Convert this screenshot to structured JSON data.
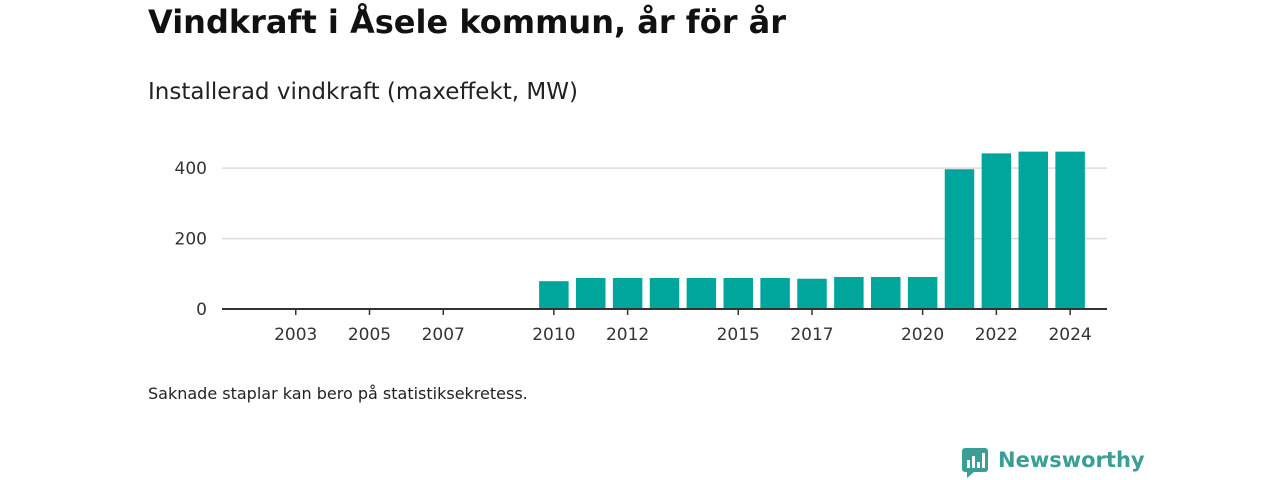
{
  "title": "Vindkraft i Åsele kommun, år för år",
  "subtitle": "Installerad vindkraft (maxeffekt, MW)",
  "footnote": "Saknade staplar kan bero på statistiksekretess.",
  "brand": {
    "name": "Newsworthy",
    "color": "#3a9e96",
    "icon": "newsworthy-logo-icon"
  },
  "colors": {
    "bar": "#00a69c",
    "grid": "#dcdcdc",
    "axis": "#333333",
    "text": "#111111"
  },
  "chart_data": {
    "type": "bar",
    "xlabel": "",
    "ylabel": "",
    "x_range": [
      2001,
      2025
    ],
    "ylim": [
      0,
      480
    ],
    "y_ticks": [
      0,
      200,
      400
    ],
    "x_ticks": [
      2003,
      2005,
      2007,
      2010,
      2012,
      2015,
      2017,
      2020,
      2022,
      2024
    ],
    "grid": true,
    "legend": "none",
    "categories": [
      2010,
      2011,
      2012,
      2013,
      2014,
      2015,
      2016,
      2017,
      2018,
      2019,
      2020,
      2021,
      2022,
      2023,
      2024
    ],
    "values": [
      79,
      88,
      88,
      88,
      88,
      88,
      88,
      86,
      91,
      91,
      91,
      397,
      442,
      447,
      447
    ]
  }
}
